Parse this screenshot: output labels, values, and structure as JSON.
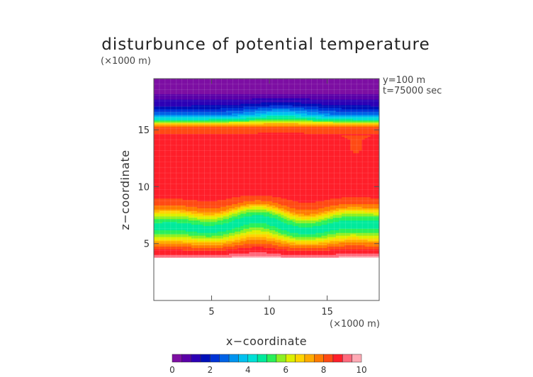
{
  "chart_data": {
    "type": "heatmap",
    "title": "disturbunce of potential temperature",
    "xlabel": "x−coordinate",
    "ylabel": "z−coordinate",
    "x_unit": "(×1000 m)",
    "z_unit": "(×1000 m)",
    "annotations": [
      "y=100 m",
      "t=75000 sec"
    ],
    "xlim": [
      0,
      19.5
    ],
    "ylim": [
      0,
      19.5
    ],
    "x_ticks": [
      5,
      10,
      15
    ],
    "y_ticks": [
      5,
      10,
      15
    ],
    "colorbar": {
      "ticks": [
        0,
        2,
        4,
        6,
        8,
        10
      ],
      "range": [
        0,
        10
      ],
      "levels": 20
    },
    "field_profile": {
      "z": [
        3.8,
        4.1,
        4.5,
        5.0,
        5.5,
        6.0,
        6.6,
        7.2,
        7.7,
        8.2,
        9.0,
        10.0,
        12.0,
        14.0,
        15.2,
        15.6,
        15.9,
        16.4,
        17.2,
        17.9,
        18.4,
        19.5
      ],
      "value": [
        9.6,
        9.0,
        8.5,
        7.6,
        6.4,
        5.3,
        4.6,
        5.3,
        6.4,
        7.8,
        8.5,
        8.8,
        9.0,
        8.9,
        8.2,
        6.5,
        4.6,
        2.8,
        1.4,
        0.8,
        0.2,
        0.1
      ],
      "blank_below_z": 3.8
    }
  }
}
